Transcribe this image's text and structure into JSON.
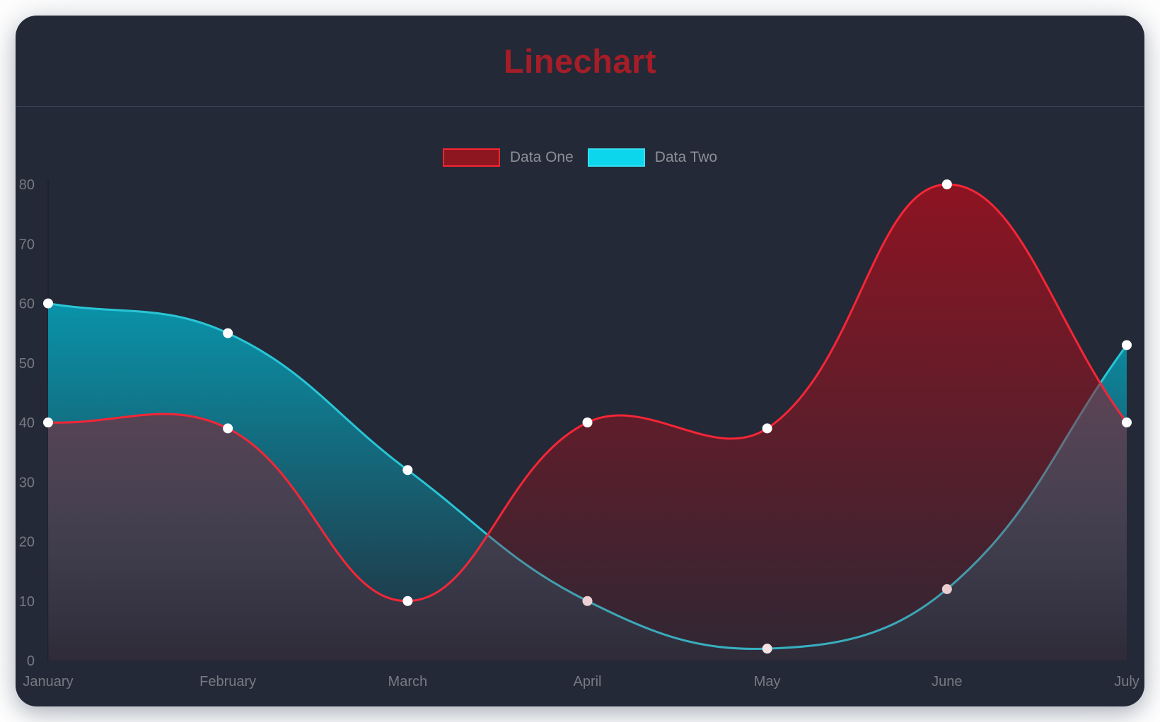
{
  "header": {
    "title": "Linechart"
  },
  "colors": {
    "page_background": "#ffffff",
    "card_background": "#232936",
    "title": "#a51d27",
    "divider": "rgba(122,144,190,0.28)",
    "axis_label": "#767a83",
    "legend_label": "#8b8f98",
    "axis_line": "rgba(0,0,0,0.28)"
  },
  "legend": {
    "items": [
      {
        "label": "Data One",
        "swatch_fill": "#8e1620",
        "swatch_border": "#f82531"
      },
      {
        "label": "Data Two",
        "swatch_fill": "#0cd6ec",
        "swatch_border": "#35dff2"
      }
    ]
  },
  "chart_data": {
    "type": "line",
    "title": "Linechart",
    "categories": [
      "January",
      "February",
      "March",
      "April",
      "May",
      "June",
      "July"
    ],
    "series": [
      {
        "name": "Data One",
        "values": [
          40,
          39,
          10,
          40,
          39,
          80,
          40
        ],
        "line_color": "#f52637",
        "fill_color": "#a0101e",
        "fill_opacity_top": 0.85,
        "fill_opacity_bottom": 0.1,
        "point_color": "#ffffff"
      },
      {
        "name": "Data Two",
        "values": [
          60,
          55,
          32,
          10,
          2,
          12,
          53
        ],
        "line_color": "#29c5d6",
        "fill_color": "#00bcd6",
        "fill_opacity_top": 0.95,
        "fill_opacity_bottom": 0.03,
        "point_color": "#ffffff"
      }
    ],
    "xlabel": "",
    "ylabel": "",
    "ylim": [
      0,
      80
    ],
    "yticks": [
      0,
      10,
      20,
      30,
      40,
      50,
      60,
      70,
      80
    ],
    "grid": false,
    "legend_position": "top",
    "curve_tension": 0.4,
    "fill": "area-to-zero",
    "point_radius": 7,
    "line_width": 3
  }
}
